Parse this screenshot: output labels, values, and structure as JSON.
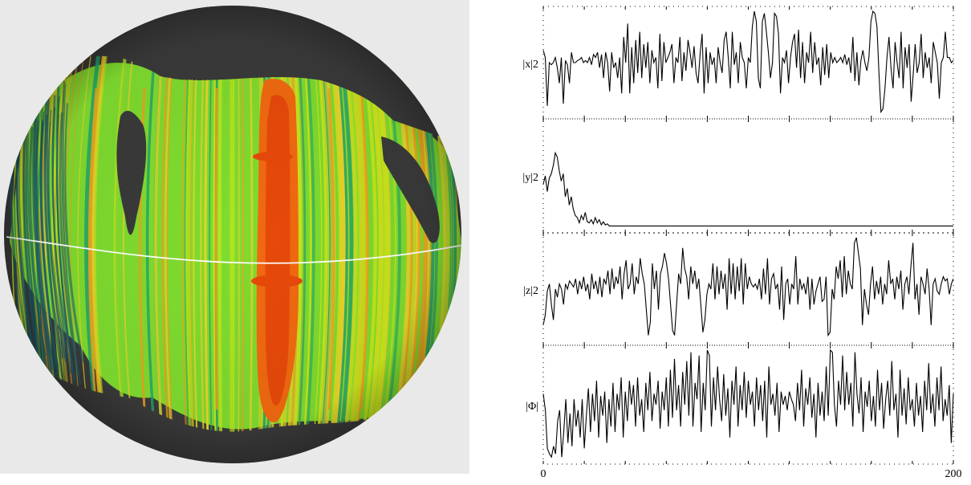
{
  "sphere": {
    "background_color": "#e9e9e9",
    "disk_color": "#3a3a3a",
    "palette": [
      "#1b5e6b",
      "#22a36b",
      "#7fdc2f",
      "#c7e81a",
      "#e7d42a",
      "#f0a020",
      "#f26a10",
      "#e84a0a"
    ]
  },
  "chart_data": {
    "type": "line",
    "x_tick_labels": [
      "0",
      "200"
    ],
    "xlim": [
      0,
      200
    ],
    "grid": "dotted",
    "series": [
      {
        "name": "|x|2",
        "y": [
          0.62,
          0.55,
          0.08,
          0.5,
          0.48,
          0.5,
          0.55,
          0.45,
          0.3,
          0.55,
          0.1,
          0.52,
          0.48,
          0.3,
          0.6,
          0.5,
          0.5,
          0.52,
          0.53,
          0.55,
          0.5,
          0.52,
          0.5,
          0.55,
          0.48,
          0.58,
          0.55,
          0.6,
          0.45,
          0.58,
          0.35,
          0.6,
          0.5,
          0.22,
          0.6,
          0.45,
          0.5,
          0.35,
          0.55,
          0.2,
          0.75,
          0.5,
          0.88,
          0.2,
          0.65,
          0.3,
          0.72,
          0.4,
          0.8,
          0.35,
          0.68,
          0.45,
          0.7,
          0.3,
          0.62,
          0.5,
          0.55,
          0.25,
          0.78,
          0.32,
          0.7,
          0.5,
          0.55,
          0.6,
          0.68,
          0.3,
          0.55,
          0.5,
          0.75,
          0.32,
          0.6,
          0.42,
          0.72,
          0.6,
          0.45,
          0.66,
          0.4,
          0.3,
          0.58,
          0.78,
          0.2,
          0.65,
          0.3,
          0.6,
          0.48,
          0.55,
          0.3,
          0.65,
          0.5,
          0.4,
          0.72,
          0.8,
          0.55,
          0.25,
          0.8,
          0.48,
          0.6,
          0.3,
          0.7,
          0.55,
          0.5,
          0.25,
          0.55,
          0.5,
          0.85,
          1.0,
          0.9,
          0.35,
          0.25,
          0.9,
          0.98,
          0.8,
          0.6,
          0.35,
          0.5,
          0.98,
          0.95,
          0.78,
          0.2,
          0.55,
          0.5,
          0.62,
          0.3,
          0.55,
          0.7,
          0.78,
          0.45,
          0.82,
          0.35,
          0.7,
          0.3,
          0.6,
          0.5,
          0.8,
          0.4,
          0.7,
          0.48,
          0.55,
          0.28,
          0.65,
          0.38,
          0.68,
          0.35,
          0.6,
          0.5,
          0.55,
          0.5,
          0.52,
          0.55,
          0.5,
          0.58,
          0.48,
          0.55,
          0.4,
          0.75,
          0.32,
          0.6,
          0.28,
          0.52,
          0.62,
          0.5,
          0.42,
          0.55,
          0.9,
          1.0,
          0.98,
          0.85,
          0.4,
          0.02,
          0.05,
          0.25,
          0.55,
          0.75,
          0.45,
          0.25,
          0.7,
          0.5,
          0.35,
          0.8,
          0.25,
          0.65,
          0.45,
          0.68,
          0.12,
          0.38,
          0.68,
          0.4,
          0.5,
          0.78,
          0.35,
          0.6,
          0.45,
          0.55,
          0.3,
          0.7,
          0.6,
          0.5,
          0.15,
          0.5,
          0.55,
          0.8,
          0.55,
          0.55,
          0.5,
          0.52
        ]
      },
      {
        "name": "|y|2",
        "y": [
          0.42,
          0.5,
          0.35,
          0.48,
          0.52,
          0.6,
          0.72,
          0.68,
          0.55,
          0.45,
          0.52,
          0.3,
          0.38,
          0.22,
          0.3,
          0.18,
          0.12,
          0.1,
          0.05,
          0.12,
          0.08,
          0.15,
          0.06,
          0.05,
          0.08,
          0.04,
          0.1,
          0.05,
          0.08,
          0.03,
          0.06,
          0.03,
          0.04,
          0.02,
          0.02,
          0.02,
          0.02,
          0.02,
          0.02,
          0.02,
          0.02,
          0.02,
          0.02,
          0.02,
          0.02,
          0.02,
          0.02,
          0.02,
          0.02,
          0.02,
          0.02,
          0.02,
          0.02,
          0.02,
          0.02,
          0.02,
          0.02,
          0.02,
          0.02,
          0.02,
          0.02,
          0.02,
          0.02,
          0.02,
          0.02,
          0.02,
          0.02,
          0.02,
          0.02,
          0.02,
          0.02,
          0.02,
          0.02,
          0.02,
          0.02,
          0.02,
          0.02,
          0.02,
          0.02,
          0.02,
          0.02,
          0.02,
          0.02,
          0.02,
          0.02,
          0.02,
          0.02,
          0.02,
          0.02,
          0.02,
          0.02,
          0.02,
          0.02,
          0.02,
          0.02,
          0.02,
          0.02,
          0.02,
          0.02,
          0.02,
          0.02,
          0.02,
          0.02,
          0.02,
          0.02,
          0.02,
          0.02,
          0.02,
          0.02,
          0.02,
          0.02,
          0.02,
          0.02,
          0.02,
          0.02,
          0.02,
          0.02,
          0.02,
          0.02,
          0.02,
          0.02,
          0.02,
          0.02,
          0.02,
          0.02,
          0.02,
          0.02,
          0.02,
          0.02,
          0.02,
          0.02,
          0.02,
          0.02,
          0.02,
          0.02,
          0.02,
          0.02,
          0.02,
          0.02,
          0.02,
          0.02,
          0.02,
          0.02,
          0.02,
          0.02,
          0.02,
          0.02,
          0.02,
          0.02,
          0.02,
          0.02,
          0.02,
          0.02,
          0.02,
          0.02,
          0.02,
          0.02,
          0.02,
          0.02,
          0.02,
          0.02,
          0.02,
          0.02,
          0.02,
          0.02,
          0.02,
          0.02,
          0.02,
          0.02,
          0.02,
          0.02,
          0.02,
          0.02,
          0.02,
          0.02,
          0.02,
          0.02,
          0.02,
          0.02,
          0.02,
          0.02,
          0.02,
          0.02,
          0.02,
          0.02,
          0.02,
          0.02,
          0.02,
          0.02,
          0.02,
          0.02,
          0.02,
          0.02,
          0.02,
          0.02,
          0.02,
          0.02,
          0.02,
          0.02,
          0.02,
          0.02,
          0.02,
          0.02,
          0.02,
          0.02,
          0.02
        ]
      },
      {
        "name": "|z|2",
        "y": [
          0.15,
          0.25,
          0.48,
          0.55,
          0.35,
          0.2,
          0.5,
          0.42,
          0.55,
          0.5,
          0.35,
          0.55,
          0.5,
          0.58,
          0.55,
          0.52,
          0.6,
          0.45,
          0.58,
          0.5,
          0.62,
          0.48,
          0.55,
          0.4,
          0.65,
          0.5,
          0.58,
          0.45,
          0.62,
          0.42,
          0.6,
          0.55,
          0.68,
          0.45,
          0.7,
          0.5,
          0.62,
          0.55,
          0.72,
          0.4,
          0.65,
          0.78,
          0.5,
          0.55,
          0.75,
          0.45,
          0.62,
          0.55,
          0.8,
          0.65,
          0.55,
          0.3,
          0.05,
          0.18,
          0.75,
          0.5,
          0.68,
          0.3,
          0.65,
          0.72,
          0.85,
          0.75,
          0.6,
          0.35,
          0.1,
          0.05,
          0.35,
          0.65,
          0.55,
          0.9,
          0.7,
          0.62,
          0.4,
          0.72,
          0.55,
          0.68,
          0.5,
          0.6,
          0.35,
          0.08,
          0.2,
          0.45,
          0.55,
          0.5,
          0.75,
          0.4,
          0.72,
          0.45,
          0.68,
          0.5,
          0.65,
          0.3,
          0.8,
          0.45,
          0.75,
          0.4,
          0.72,
          0.48,
          0.8,
          0.35,
          0.75,
          0.5,
          0.62,
          0.55,
          0.52,
          0.55,
          0.5,
          0.6,
          0.4,
          0.7,
          0.45,
          0.8,
          0.35,
          0.6,
          0.65,
          0.5,
          0.55,
          0.3,
          0.72,
          0.2,
          0.55,
          0.6,
          0.35,
          0.55,
          0.5,
          0.82,
          0.35,
          0.6,
          0.5,
          0.55,
          0.45,
          0.62,
          0.3,
          0.6,
          0.35,
          0.48,
          0.55,
          0.62,
          0.38,
          0.4,
          0.62,
          0.05,
          0.08,
          0.5,
          0.4,
          0.72,
          0.6,
          0.78,
          0.42,
          0.82,
          0.45,
          0.68,
          0.55,
          0.5,
          0.95,
          1.0,
          0.85,
          0.7,
          0.15,
          0.5,
          0.35,
          0.25,
          0.55,
          0.72,
          0.4,
          0.58,
          0.45,
          0.62,
          0.35,
          0.55,
          0.45,
          0.78,
          0.55,
          0.6,
          0.4,
          0.62,
          0.5,
          0.68,
          0.3,
          0.55,
          0.62,
          0.45,
          0.72,
          0.95,
          0.4,
          0.55,
          0.25,
          0.62,
          0.55,
          0.45,
          0.7,
          0.5,
          0.15,
          0.55,
          0.6,
          0.48,
          0.45,
          0.55,
          0.62,
          0.58,
          0.6,
          0.45,
          0.55,
          0.6
        ]
      },
      {
        "name": "|Φ|",
        "y": [
          0.6,
          0.45,
          0.1,
          0.05,
          0.02,
          0.12,
          0.05,
          0.35,
          0.45,
          0.02,
          0.25,
          0.55,
          0.15,
          0.42,
          0.12,
          0.55,
          0.3,
          0.45,
          0.2,
          0.55,
          0.1,
          0.4,
          0.65,
          0.25,
          0.6,
          0.35,
          0.72,
          0.2,
          0.58,
          0.4,
          0.62,
          0.15,
          0.55,
          0.3,
          0.7,
          0.25,
          0.6,
          0.45,
          0.75,
          0.2,
          0.62,
          0.35,
          0.72,
          0.5,
          0.68,
          0.3,
          0.75,
          0.4,
          0.55,
          0.25,
          0.7,
          0.45,
          0.8,
          0.35,
          0.6,
          0.5,
          0.72,
          0.28,
          0.62,
          0.45,
          0.75,
          0.3,
          0.82,
          0.38,
          0.92,
          0.45,
          0.68,
          0.3,
          0.8,
          0.5,
          0.9,
          0.4,
          0.98,
          0.3,
          0.7,
          0.55,
          0.95,
          0.25,
          0.7,
          0.45,
          1.0,
          0.95,
          0.3,
          0.75,
          0.45,
          0.85,
          0.55,
          0.35,
          0.78,
          0.4,
          0.65,
          0.2,
          0.72,
          0.5,
          0.85,
          0.3,
          0.68,
          0.45,
          0.8,
          0.38,
          0.72,
          0.5,
          0.62,
          0.3,
          0.75,
          0.45,
          0.68,
          0.35,
          0.72,
          0.2,
          0.85,
          0.5,
          0.6,
          0.4,
          0.7,
          0.25,
          0.62,
          0.5,
          0.58,
          0.45,
          0.62,
          0.55,
          0.5,
          0.35,
          0.7,
          0.45,
          0.82,
          0.3,
          0.65,
          0.5,
          0.75,
          0.38,
          0.6,
          0.2,
          0.7,
          0.4,
          0.62,
          0.35,
          0.85,
          0.4,
          1.0,
          0.98,
          0.5,
          0.3,
          0.72,
          0.5,
          0.95,
          0.45,
          0.8,
          0.5,
          0.7,
          0.3,
          0.98,
          0.6,
          0.42,
          0.75,
          0.25,
          0.62,
          0.48,
          0.72,
          0.35,
          0.58,
          0.3,
          0.82,
          0.45,
          0.7,
          0.28,
          0.55,
          0.72,
          0.4,
          0.9,
          0.45,
          0.6,
          0.2,
          0.82,
          0.4,
          0.65,
          0.32,
          0.75,
          0.45,
          0.55,
          0.3,
          0.7,
          0.4,
          0.58,
          0.25,
          0.72,
          0.45,
          0.88,
          0.42,
          0.6,
          0.3,
          0.75,
          0.45,
          0.85,
          0.35,
          0.55,
          0.4,
          0.68,
          0.15,
          0.6
        ]
      }
    ]
  }
}
